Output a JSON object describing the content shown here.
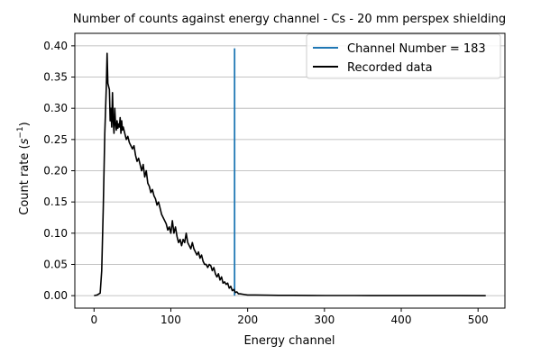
{
  "chart_data": {
    "type": "line",
    "title": "Number of counts against energy channel - Cs - 20 mm perspex shielding",
    "xlabel": "Energy channel",
    "ylabel_main": "Count rate (",
    "ylabel_base": "s",
    "ylabel_sup": "−1",
    "ylabel_close": ")",
    "xlim": [
      -25,
      535
    ],
    "ylim": [
      -0.02,
      0.42
    ],
    "xticks": [
      0,
      100,
      200,
      300,
      400,
      500
    ],
    "yticks": [
      0.0,
      0.05,
      0.1,
      0.15,
      0.2,
      0.25,
      0.3,
      0.35,
      0.4
    ],
    "ytick_labels": [
      "0.00",
      "0.05",
      "0.10",
      "0.15",
      "0.20",
      "0.25",
      "0.30",
      "0.35",
      "0.40"
    ],
    "grid": "horizontal",
    "legend_placement": "upper-right",
    "colors": {
      "marker_line": "#1f77b4",
      "recorded": "#000000",
      "grid": "#b0b0b0"
    },
    "series": [
      {
        "name": "Channel Number = 183",
        "kind": "vertical-line",
        "x": 183,
        "y": [
          0.0,
          0.396
        ]
      },
      {
        "name": "Recorded data",
        "kind": "line",
        "points": [
          [
            0,
            0.0
          ],
          [
            4,
            0.001
          ],
          [
            8,
            0.004
          ],
          [
            10,
            0.04
          ],
          [
            12,
            0.14
          ],
          [
            14,
            0.26
          ],
          [
            16,
            0.335
          ],
          [
            17,
            0.388
          ],
          [
            18,
            0.34
          ],
          [
            20,
            0.33
          ],
          [
            21,
            0.28
          ],
          [
            22,
            0.3
          ],
          [
            23,
            0.27
          ],
          [
            24,
            0.325
          ],
          [
            25,
            0.28
          ],
          [
            26,
            0.26
          ],
          [
            27,
            0.3
          ],
          [
            28,
            0.275
          ],
          [
            29,
            0.265
          ],
          [
            30,
            0.28
          ],
          [
            31,
            0.268
          ],
          [
            32,
            0.275
          ],
          [
            33,
            0.27
          ],
          [
            34,
            0.285
          ],
          [
            35,
            0.26
          ],
          [
            36,
            0.28
          ],
          [
            37,
            0.265
          ],
          [
            38,
            0.27
          ],
          [
            40,
            0.26
          ],
          [
            42,
            0.25
          ],
          [
            44,
            0.255
          ],
          [
            46,
            0.245
          ],
          [
            48,
            0.24
          ],
          [
            50,
            0.235
          ],
          [
            52,
            0.24
          ],
          [
            54,
            0.225
          ],
          [
            56,
            0.215
          ],
          [
            58,
            0.22
          ],
          [
            60,
            0.21
          ],
          [
            62,
            0.2
          ],
          [
            64,
            0.21
          ],
          [
            66,
            0.19
          ],
          [
            68,
            0.2
          ],
          [
            70,
            0.18
          ],
          [
            72,
            0.175
          ],
          [
            74,
            0.165
          ],
          [
            76,
            0.17
          ],
          [
            78,
            0.16
          ],
          [
            80,
            0.155
          ],
          [
            82,
            0.145
          ],
          [
            84,
            0.15
          ],
          [
            86,
            0.14
          ],
          [
            88,
            0.13
          ],
          [
            90,
            0.125
          ],
          [
            92,
            0.12
          ],
          [
            94,
            0.115
          ],
          [
            96,
            0.105
          ],
          [
            98,
            0.11
          ],
          [
            100,
            0.1
          ],
          [
            102,
            0.12
          ],
          [
            104,
            0.1
          ],
          [
            106,
            0.11
          ],
          [
            108,
            0.095
          ],
          [
            110,
            0.085
          ],
          [
            112,
            0.09
          ],
          [
            114,
            0.08
          ],
          [
            116,
            0.09
          ],
          [
            118,
            0.085
          ],
          [
            120,
            0.1
          ],
          [
            122,
            0.085
          ],
          [
            124,
            0.08
          ],
          [
            126,
            0.075
          ],
          [
            128,
            0.085
          ],
          [
            130,
            0.075
          ],
          [
            132,
            0.07
          ],
          [
            134,
            0.065
          ],
          [
            136,
            0.07
          ],
          [
            138,
            0.06
          ],
          [
            140,
            0.065
          ],
          [
            142,
            0.055
          ],
          [
            144,
            0.05
          ],
          [
            146,
            0.05
          ],
          [
            148,
            0.045
          ],
          [
            150,
            0.05
          ],
          [
            152,
            0.048
          ],
          [
            154,
            0.04
          ],
          [
            156,
            0.045
          ],
          [
            158,
            0.035
          ],
          [
            160,
            0.03
          ],
          [
            162,
            0.035
          ],
          [
            164,
            0.025
          ],
          [
            166,
            0.03
          ],
          [
            168,
            0.02
          ],
          [
            170,
            0.022
          ],
          [
            172,
            0.018
          ],
          [
            174,
            0.02
          ],
          [
            176,
            0.012
          ],
          [
            178,
            0.015
          ],
          [
            180,
            0.008
          ],
          [
            182,
            0.01
          ],
          [
            184,
            0.005
          ],
          [
            186,
            0.006
          ],
          [
            188,
            0.003
          ],
          [
            190,
            0.003
          ],
          [
            195,
            0.002
          ],
          [
            200,
            0.001
          ],
          [
            210,
            0.001
          ],
          [
            220,
            0.0008
          ],
          [
            240,
            0.0005
          ],
          [
            260,
            0.0004
          ],
          [
            280,
            0.0003
          ],
          [
            300,
            0.0002
          ],
          [
            320,
            0.0002
          ],
          [
            340,
            0.0002
          ],
          [
            360,
            0.0001
          ],
          [
            400,
            0.0001
          ],
          [
            450,
            0.0001
          ],
          [
            510,
            0.0
          ]
        ]
      }
    ]
  }
}
